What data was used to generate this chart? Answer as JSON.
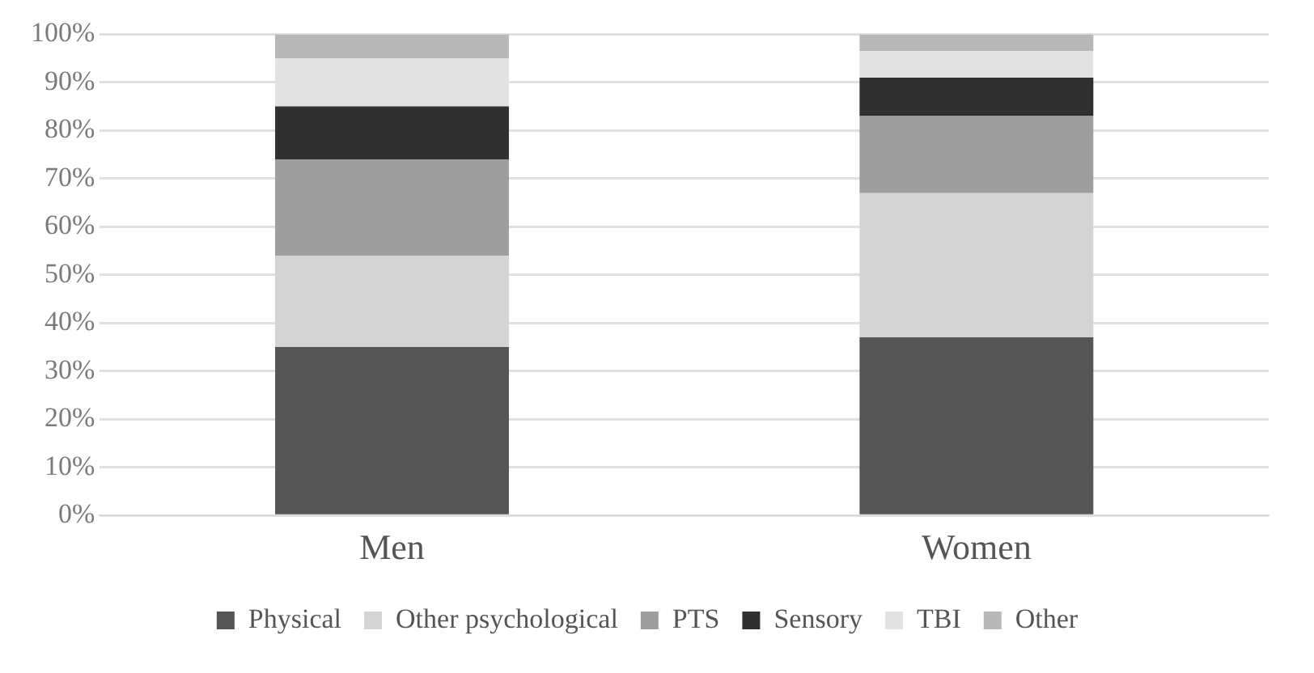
{
  "chart_data": {
    "type": "bar",
    "stacked": true,
    "categories": [
      "Men",
      "Women"
    ],
    "series": [
      {
        "name": "Physical",
        "color": "#555555",
        "values": [
          35,
          37
        ]
      },
      {
        "name": "Other psychological",
        "color": "#d4d4d4",
        "values": [
          19,
          30
        ]
      },
      {
        "name": "PTS",
        "color": "#9e9e9e",
        "values": [
          20,
          16
        ]
      },
      {
        "name": "Sensory",
        "color": "#303030",
        "values": [
          11,
          8
        ]
      },
      {
        "name": "TBI",
        "color": "#e2e2e2",
        "values": [
          10,
          5.5
        ]
      },
      {
        "name": "Other",
        "color": "#b8b8b8",
        "values": [
          5,
          3.5
        ]
      }
    ],
    "ylim": [
      0,
      100
    ],
    "yticks": [
      {
        "value": 0,
        "label": "0%"
      },
      {
        "value": 10,
        "label": "10%"
      },
      {
        "value": 20,
        "label": "20%"
      },
      {
        "value": 30,
        "label": "30%"
      },
      {
        "value": 40,
        "label": "40%"
      },
      {
        "value": 50,
        "label": "50%"
      },
      {
        "value": 60,
        "label": "60%"
      },
      {
        "value": 70,
        "label": "70%"
      },
      {
        "value": 80,
        "label": "80%"
      },
      {
        "value": 90,
        "label": "90%"
      },
      {
        "value": 100,
        "label": "100%"
      }
    ],
    "grid": "y",
    "legend": "bottom"
  }
}
